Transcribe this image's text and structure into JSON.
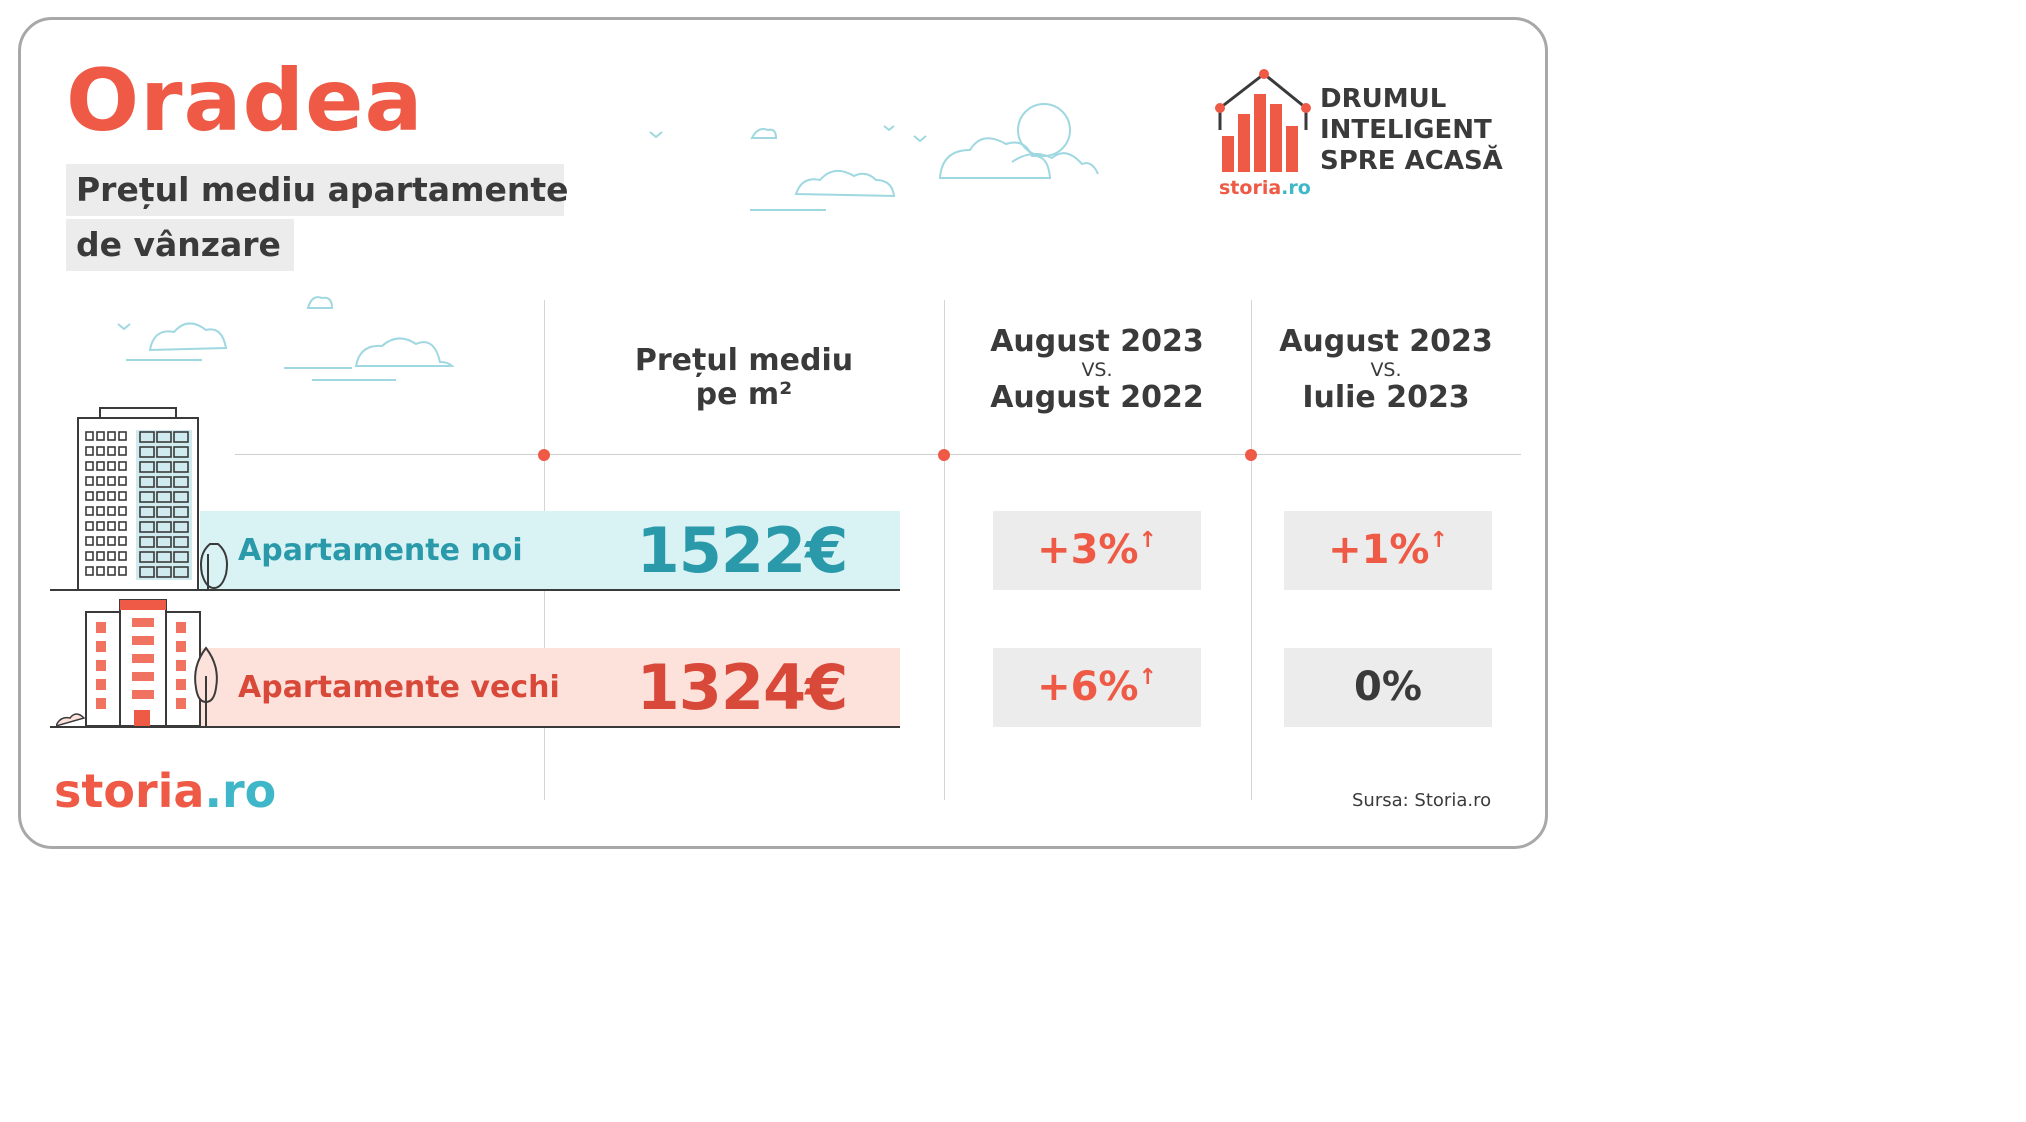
{
  "title": "Oradea",
  "subtitle_line1": "Prețul mediu apartamente",
  "subtitle_line2": "de vânzare",
  "brand": {
    "tagline_line1": "DRUMUL",
    "tagline_line2": "INTELIGENT",
    "tagline_line3": "SPRE ACASĂ",
    "logo_name": "storia",
    "logo_tld": ".ro",
    "icon": "house-bars-icon",
    "accent": "#ee5a45",
    "teal": "#3fb7c8"
  },
  "columns": {
    "price_line1": "Prețul mediu",
    "price_line2": "pe m²",
    "yoy_top": "August 2023",
    "yoy_vs": "VS.",
    "yoy_bottom": "August 2022",
    "mom_top": "August 2023",
    "mom_vs": "VS.",
    "mom_bottom": "Iulie 2023"
  },
  "rows": [
    {
      "label": "Apartamente noi",
      "price": "1522€",
      "yoy": "+3%",
      "mom": "+1%",
      "color": "#2a9aab"
    },
    {
      "label": "Apartamente vechi",
      "price": "1324€",
      "yoy": "+6%",
      "mom": "0%",
      "color": "#d9493a"
    }
  ],
  "footer": {
    "logo_name": "storia",
    "logo_tld": ".ro",
    "source": "Sursa: Storia.ro"
  }
}
